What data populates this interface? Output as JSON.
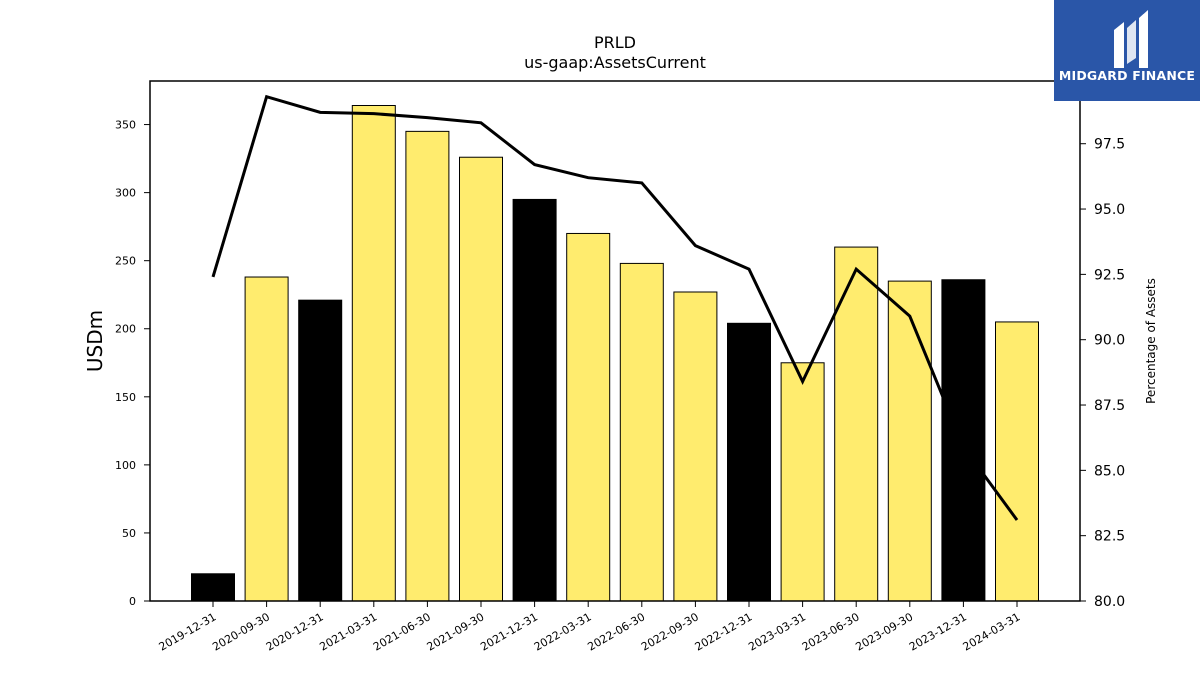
{
  "brand": {
    "name": "MIDGARD FINANCE",
    "icon": "midgard-logo-icon",
    "color": "#2a56a8"
  },
  "chart_data": {
    "type": "bar",
    "title": "PRLD",
    "subtitle": "us-gaap:AssetsCurrent",
    "ylabel": "USDm",
    "y2label": "Percentage of Assets",
    "ylim": [
      0,
      382
    ],
    "y2lim": [
      80.0,
      99.9
    ],
    "yticks": [
      0,
      50,
      100,
      150,
      200,
      250,
      300,
      350
    ],
    "y2ticks": [
      "80.0",
      "82.5",
      "85.0",
      "87.5",
      "90.0",
      "92.5",
      "95.0",
      "97.5"
    ],
    "categories": [
      "2019-12-31",
      "2020-09-30",
      "2020-12-31",
      "2021-03-31",
      "2021-06-30",
      "2021-09-30",
      "2021-12-31",
      "2022-03-31",
      "2022-06-30",
      "2022-09-30",
      "2022-12-31",
      "2023-03-31",
      "2023-06-30",
      "2023-09-30",
      "2023-12-31",
      "2024-03-31"
    ],
    "series": [
      {
        "type": "bar",
        "axis": "left",
        "values": [
          20,
          238,
          221,
          364,
          345,
          326,
          295,
          270,
          248,
          227,
          204,
          175,
          260,
          235,
          236,
          205
        ],
        "colors": [
          "#000000",
          "#ffec6e",
          "#000000",
          "#ffec6e",
          "#ffec6e",
          "#ffec6e",
          "#000000",
          "#ffec6e",
          "#ffec6e",
          "#ffec6e",
          "#000000",
          "#ffec6e",
          "#ffec6e",
          "#ffec6e",
          "#000000",
          "#ffec6e"
        ]
      },
      {
        "type": "line",
        "axis": "right",
        "color": "#000000",
        "values": [
          92.4,
          99.3,
          98.7,
          98.65,
          98.5,
          98.3,
          96.7,
          96.2,
          96.0,
          93.6,
          92.7,
          88.4,
          92.7,
          90.9,
          85.9,
          83.1
        ]
      }
    ],
    "grid": false,
    "legend": "none"
  }
}
